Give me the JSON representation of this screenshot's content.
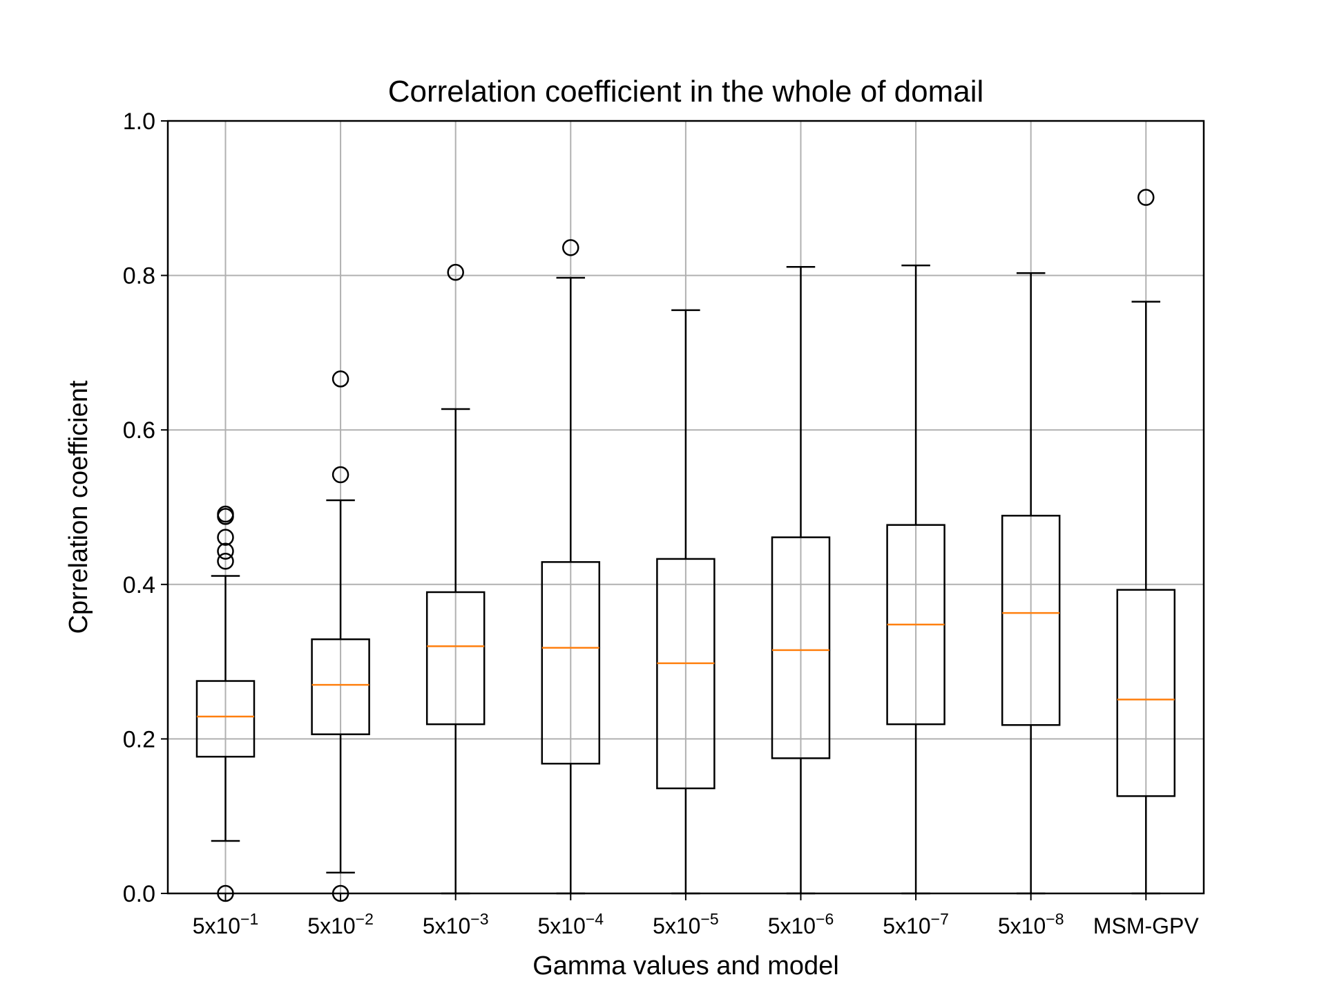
{
  "chart_data": {
    "type": "boxplot",
    "title": "Correlation coefficient in the whole of domail",
    "xlabel": "Gamma values and model",
    "ylabel": "Cprrelation coefficient",
    "ylim": [
      0,
      1.0
    ],
    "yticks": [
      "0.0",
      "0.2",
      "0.4",
      "0.6",
      "0.8",
      "1.0"
    ],
    "grid": true,
    "categories": [
      {
        "base": "5x10",
        "exp": "−1"
      },
      {
        "base": "5x10",
        "exp": "−2"
      },
      {
        "base": "5x10",
        "exp": "−3"
      },
      {
        "base": "5x10",
        "exp": "−4"
      },
      {
        "base": "5x10",
        "exp": "−5"
      },
      {
        "base": "5x10",
        "exp": "−6"
      },
      {
        "base": "5x10",
        "exp": "−7"
      },
      {
        "base": "5x10",
        "exp": "−8"
      },
      {
        "base": "MSM-GPV",
        "exp": ""
      }
    ],
    "boxes": [
      {
        "whisker_low": 0.068,
        "q1": 0.177,
        "median": 0.229,
        "q3": 0.275,
        "whisker_high": 0.411,
        "outliers": [
          0.0,
          0.43,
          0.443,
          0.461,
          0.488,
          0.491
        ]
      },
      {
        "whisker_low": 0.027,
        "q1": 0.206,
        "median": 0.27,
        "q3": 0.329,
        "whisker_high": 0.509,
        "outliers": [
          0.0,
          0.542,
          0.666
        ]
      },
      {
        "whisker_low": 0.0,
        "q1": 0.219,
        "median": 0.32,
        "q3": 0.39,
        "whisker_high": 0.627,
        "outliers": [
          0.804
        ]
      },
      {
        "whisker_low": 0.0,
        "q1": 0.168,
        "median": 0.318,
        "q3": 0.429,
        "whisker_high": 0.797,
        "outliers": [
          0.836
        ]
      },
      {
        "whisker_low": 0.0,
        "q1": 0.136,
        "median": 0.298,
        "q3": 0.433,
        "whisker_high": 0.755,
        "outliers": []
      },
      {
        "whisker_low": 0.0,
        "q1": 0.175,
        "median": 0.315,
        "q3": 0.461,
        "whisker_high": 0.811,
        "outliers": []
      },
      {
        "whisker_low": 0.0,
        "q1": 0.219,
        "median": 0.348,
        "q3": 0.477,
        "whisker_high": 0.813,
        "outliers": []
      },
      {
        "whisker_low": 0.0,
        "q1": 0.218,
        "median": 0.363,
        "q3": 0.489,
        "whisker_high": 0.803,
        "outliers": []
      },
      {
        "whisker_low": 0.0,
        "q1": 0.126,
        "median": 0.251,
        "q3": 0.393,
        "whisker_high": 0.766,
        "outliers": [
          0.901
        ]
      }
    ],
    "colors": {
      "box": "#000000",
      "median": "#ff7f0e",
      "grid": "#b0b0b0",
      "outlier": "#000000"
    }
  }
}
